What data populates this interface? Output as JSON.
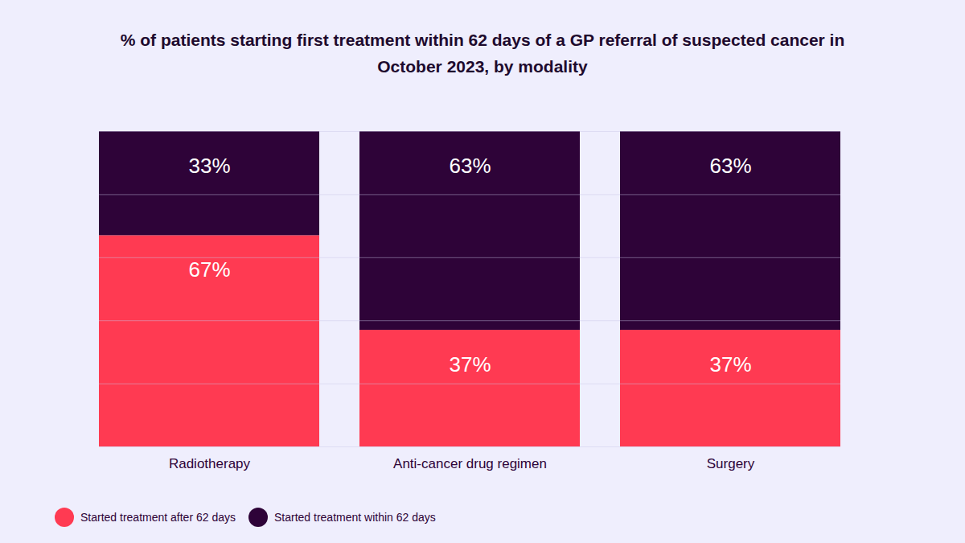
{
  "chart_data": {
    "type": "bar",
    "title": "% of patients starting first treatment within 62 days of a GP referral of suspected cancer in October 2023, by modality",
    "categories": [
      "Radiotherapy",
      "Anti-cancer drug regimen",
      "Surgery"
    ],
    "series": [
      {
        "name": "Started treatment after 62 days",
        "color": "#ff3a52",
        "values": [
          67,
          37,
          37
        ],
        "value_labels": [
          "67%",
          "37%",
          "37%"
        ]
      },
      {
        "name": "Started treatment within 62 days",
        "color": "#2e0338",
        "values": [
          33,
          63,
          63
        ],
        "value_labels": [
          "33%",
          "63%",
          "63%"
        ]
      }
    ],
    "stacked": true,
    "data_labels": true,
    "ylim": [
      0,
      100
    ],
    "yticks": [
      0,
      20,
      40,
      60,
      80,
      100
    ],
    "grid": true,
    "tick_labels": "x",
    "legend": "bottom-left"
  }
}
